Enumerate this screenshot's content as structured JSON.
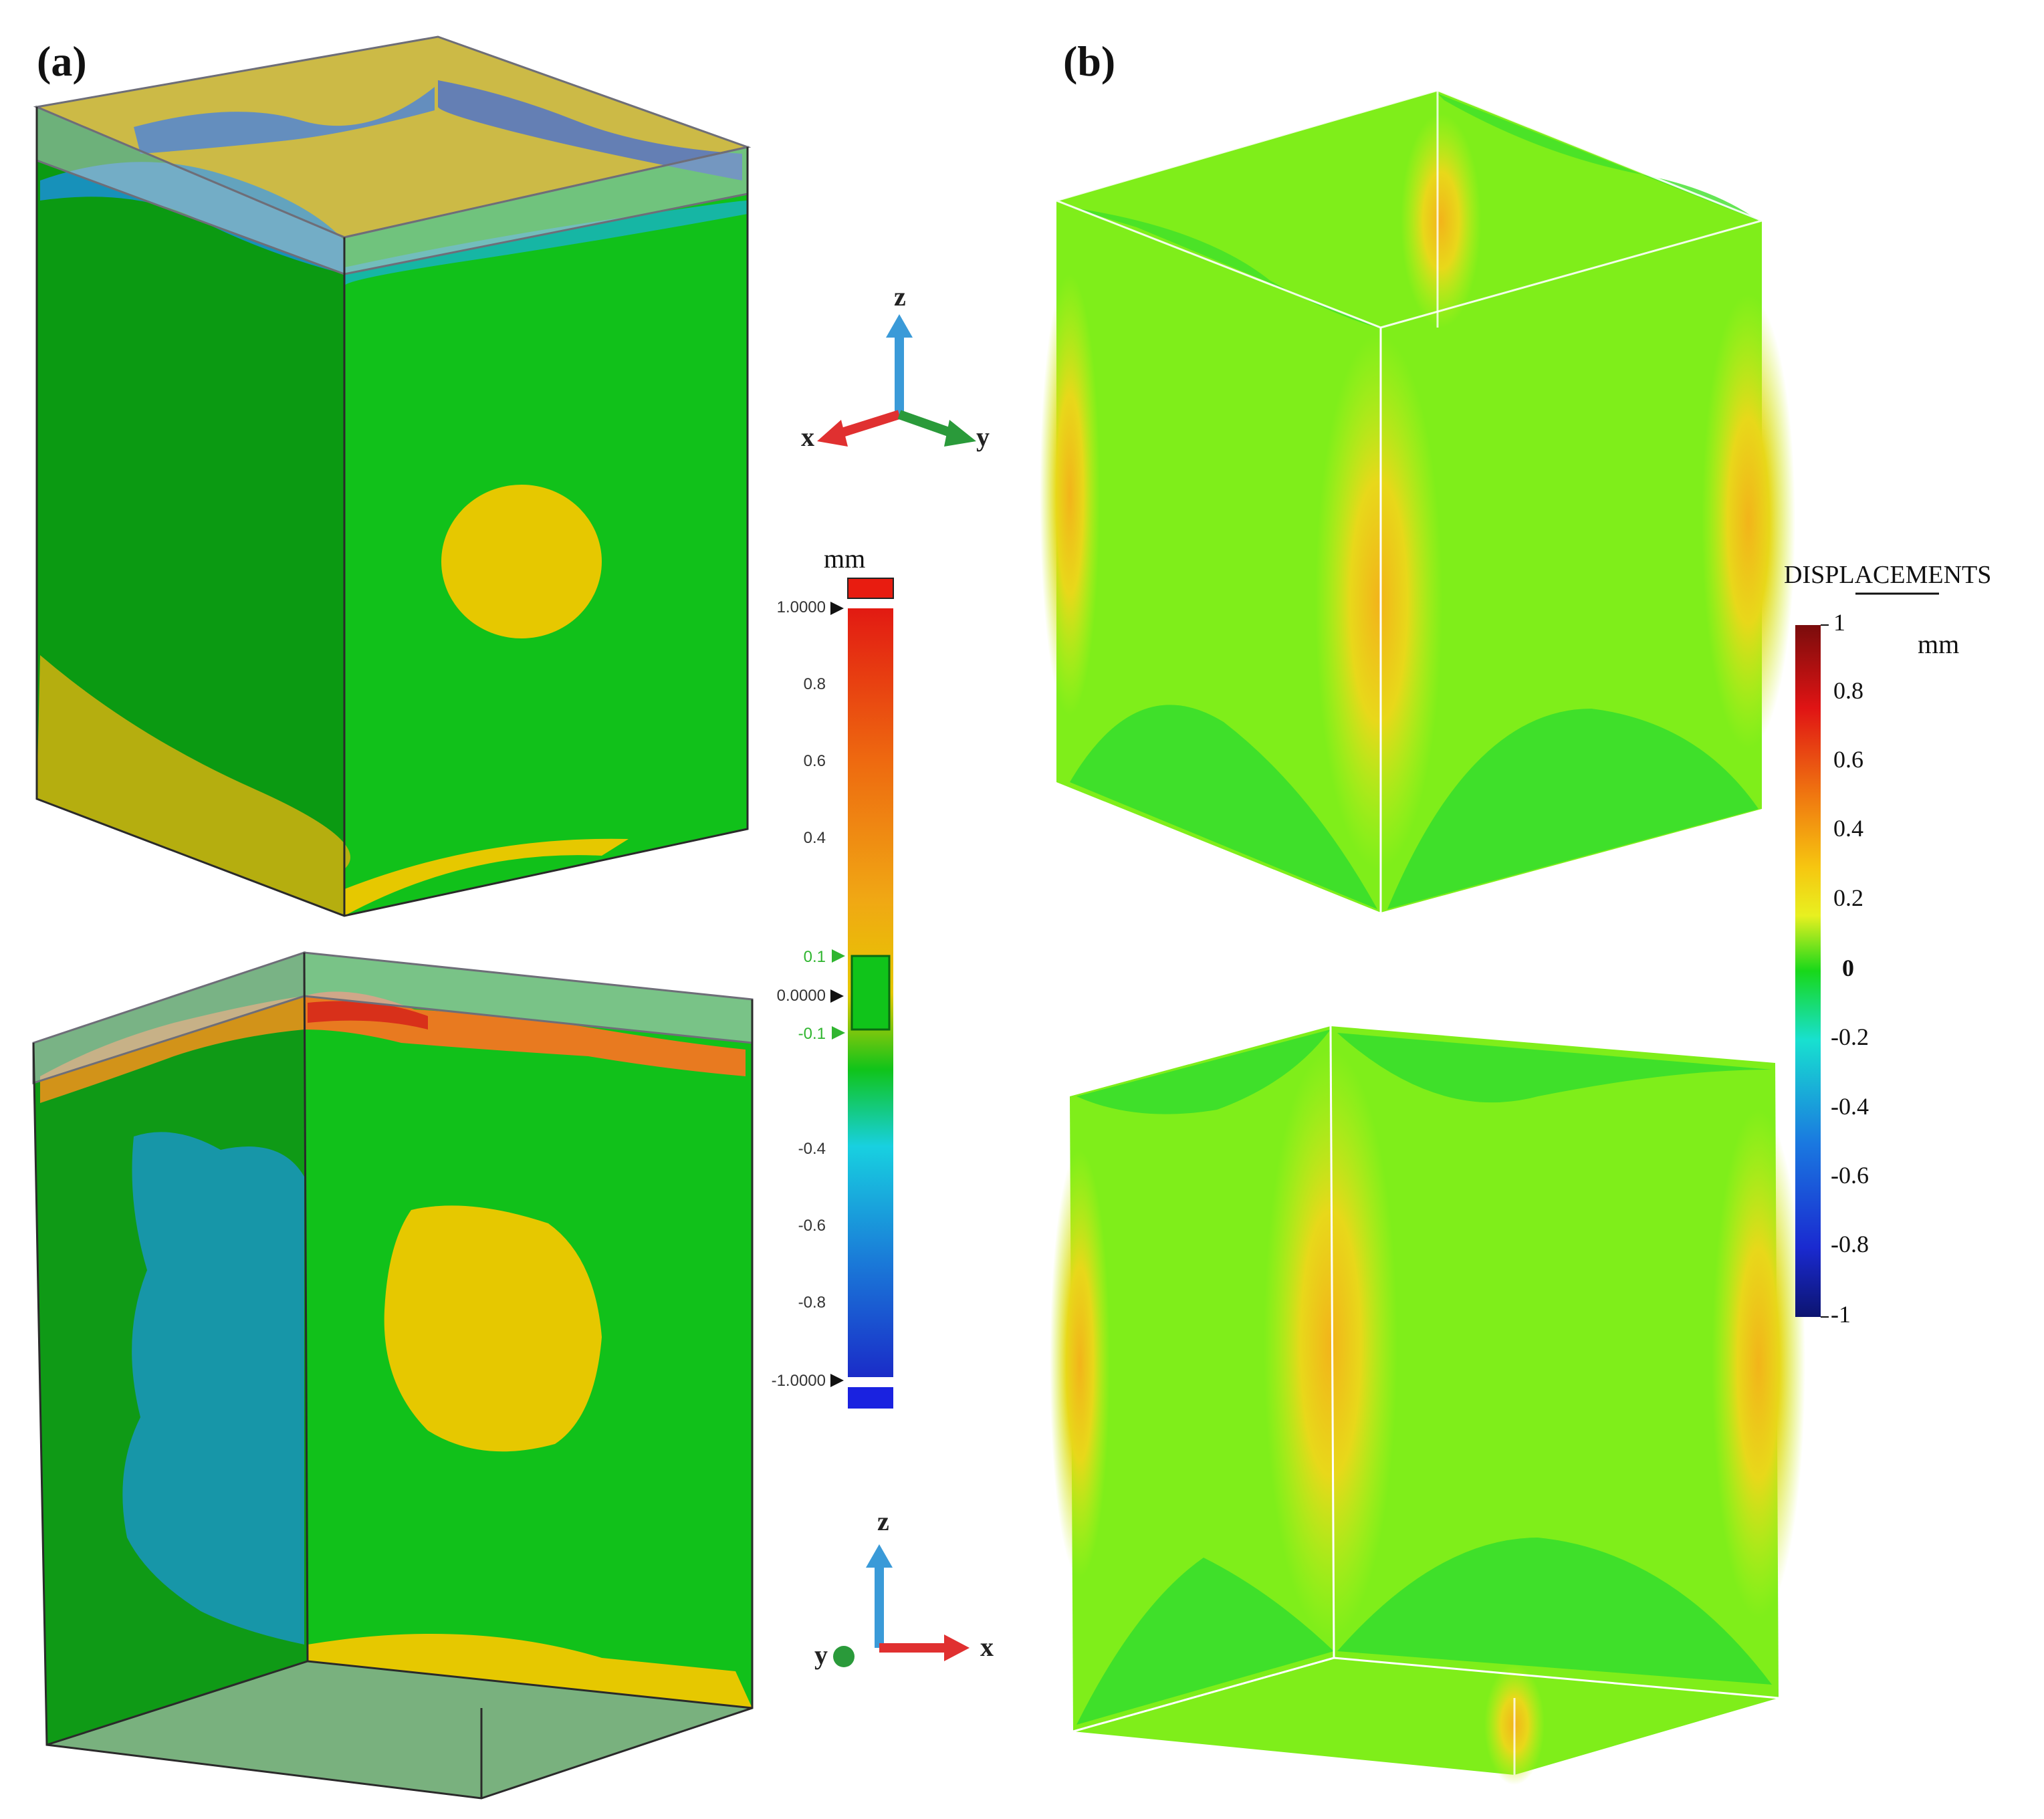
{
  "panels": {
    "a": {
      "label": "(a)"
    },
    "b": {
      "label": "(b)"
    }
  },
  "axes_triads": {
    "top": {
      "z": "z",
      "x": "x",
      "y": "y"
    },
    "bottom": {
      "z": "z",
      "left": "y",
      "right": "x"
    }
  },
  "legend_a": {
    "unit": "mm",
    "ticks": [
      "1.0000",
      "0.8",
      "0.6",
      "0.4",
      "0.1",
      "0.0000",
      "-0.1",
      "-0.4",
      "-0.6",
      "-0.8",
      "-1.0000"
    ],
    "highlighted_ticks": [
      "0.1",
      "-0.1"
    ],
    "colors": {
      "over": "#e81c10",
      "under": "#1a22e0",
      "band": "#10c41a"
    }
  },
  "legend_b": {
    "title": "DISPLACEMENTS",
    "unit": "mm",
    "ticks": [
      "1",
      "0.8",
      "0.6",
      "0.4",
      "0.2",
      "0",
      "-0.2",
      "-0.4",
      "-0.6",
      "-0.8",
      "-1"
    ]
  },
  "colors": {
    "measured_green": "#11c11a",
    "measured_dark_green": "#0b9a12",
    "measured_yellow": "#e6c800",
    "measured_teal": "#1796a8",
    "fem_green": "#7fee1a",
    "fem_deep_green": "#3fe02a",
    "fem_yellow": "#e8f020",
    "fem_orange": "#f2b41a"
  }
}
